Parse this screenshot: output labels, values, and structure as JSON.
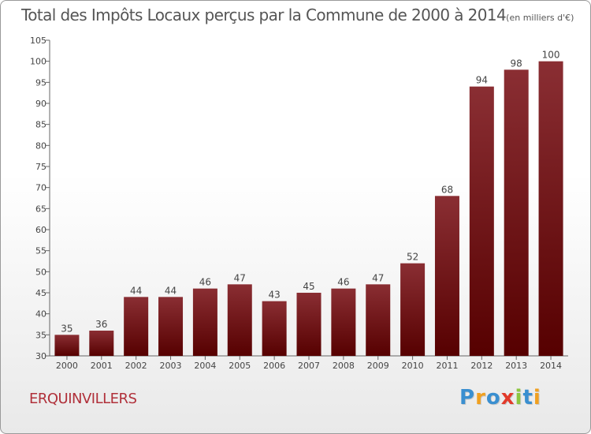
{
  "header": {
    "title": "Total des Impôts Locaux perçus par la Commune de 2000 à 2014",
    "unit": "(en milliers d'€)"
  },
  "commune": "ERQUINVILLERS",
  "logo": {
    "letters": [
      {
        "char": "P",
        "color": "#3a8fd0"
      },
      {
        "char": "r",
        "color": "#f0a020"
      },
      {
        "char": "o",
        "color": "#3a8fd0"
      },
      {
        "char": "x",
        "color": "#e23a2a"
      },
      {
        "char": "i",
        "color": "#8cc63f"
      },
      {
        "char": "t",
        "color": "#3a8fd0"
      },
      {
        "char": "i",
        "color": "#f0a020"
      }
    ]
  },
  "chart_data": {
    "type": "bar",
    "title": "Total des Impôts Locaux perçus par la Commune de 2000 à 2014",
    "xlabel": "",
    "ylabel": "",
    "categories": [
      "2000",
      "2001",
      "2002",
      "2003",
      "2004",
      "2005",
      "2006",
      "2007",
      "2008",
      "2009",
      "2010",
      "2011",
      "2012",
      "2013",
      "2014"
    ],
    "values": [
      35,
      36,
      44,
      44,
      46,
      47,
      43,
      45,
      46,
      47,
      52,
      68,
      94,
      98,
      100
    ],
    "ylim": [
      30,
      105
    ],
    "yticks": [
      30,
      35,
      40,
      45,
      50,
      55,
      60,
      65,
      70,
      75,
      80,
      85,
      90,
      95,
      100,
      105
    ],
    "grid": false,
    "data_labels": true,
    "bar_color": "#7a1a1e"
  }
}
